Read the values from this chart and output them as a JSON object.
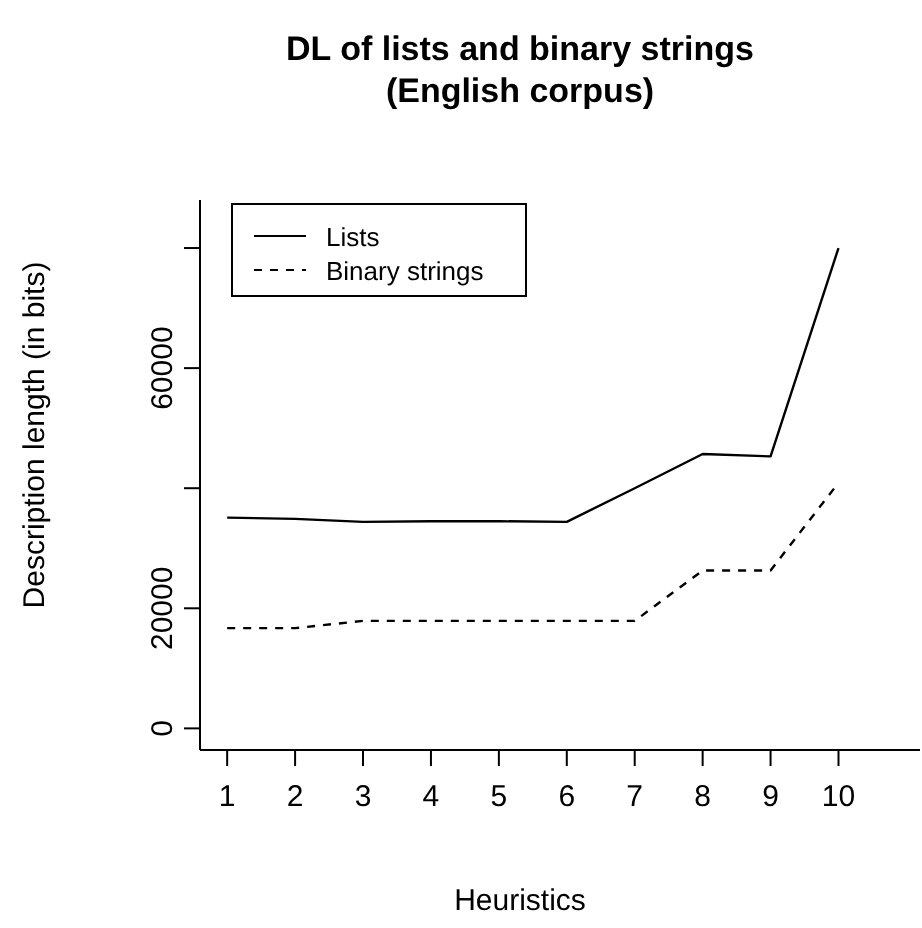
{
  "chart_data": {
    "type": "line",
    "title": "DL of lists and binary strings\n(English corpus)",
    "xlabel": "Heuristics",
    "ylabel": "Description length (in bits)",
    "x": [
      1,
      2,
      3,
      4,
      5,
      6,
      7,
      8,
      9,
      10
    ],
    "series": [
      {
        "name": "Lists",
        "color": "#000000",
        "line_style": "solid",
        "values": [
          35100,
          34900,
          34400,
          34500,
          34500,
          34400,
          40000,
          45700,
          45300,
          80000
        ]
      },
      {
        "name": "Binary strings",
        "color": "#000000",
        "line_style": "dashed",
        "values": [
          16700,
          16700,
          17900,
          17900,
          17900,
          17900,
          17900,
          26300,
          26300,
          40900
        ]
      }
    ],
    "xlim": [
      0.6,
      11.2
    ],
    "xticks": [
      1,
      2,
      3,
      4,
      5,
      6,
      7,
      8,
      9,
      10
    ],
    "ylim": [
      -3600,
      88000
    ],
    "yticks": [
      0,
      20000,
      {
        "value": 40000,
        "label": null
      },
      60000,
      {
        "value": 80000,
        "label": null
      }
    ],
    "legend": "top left",
    "marker": "none",
    "grid": false
  }
}
